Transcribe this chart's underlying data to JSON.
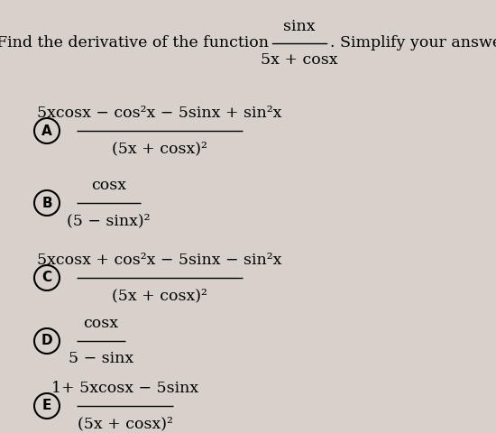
{
  "background_color": "#d8d1cb",
  "title_prefix": "Find the derivative of the function",
  "title_suffix": ". Simplify your answer.",
  "fraction_numerator": "sinx",
  "fraction_denominator": "5x + cosx",
  "options": [
    {
      "label": "A",
      "numerator": "5xcosx − cos²x − 5sinx + sin²x",
      "denominator": "(5x + cosx)²"
    },
    {
      "label": "B",
      "numerator": "cosx",
      "denominator": "(5 − sinx)²"
    },
    {
      "label": "C",
      "numerator": "5xcosx + cos²x − 5sinx − sin²x",
      "denominator": "(5x + cosx)²"
    },
    {
      "label": "D",
      "numerator": "cosx",
      "denominator": "5 − sinx"
    },
    {
      "label": "E",
      "numerator": "1+ 5xcosx − 5sinx",
      "denominator": "(5x + cosx)²"
    }
  ],
  "figsize": [
    5.5,
    4.8
  ],
  "dpi": 100,
  "title_fontsize": 12.5,
  "math_fontsize": 12.5,
  "label_fontsize": 11
}
